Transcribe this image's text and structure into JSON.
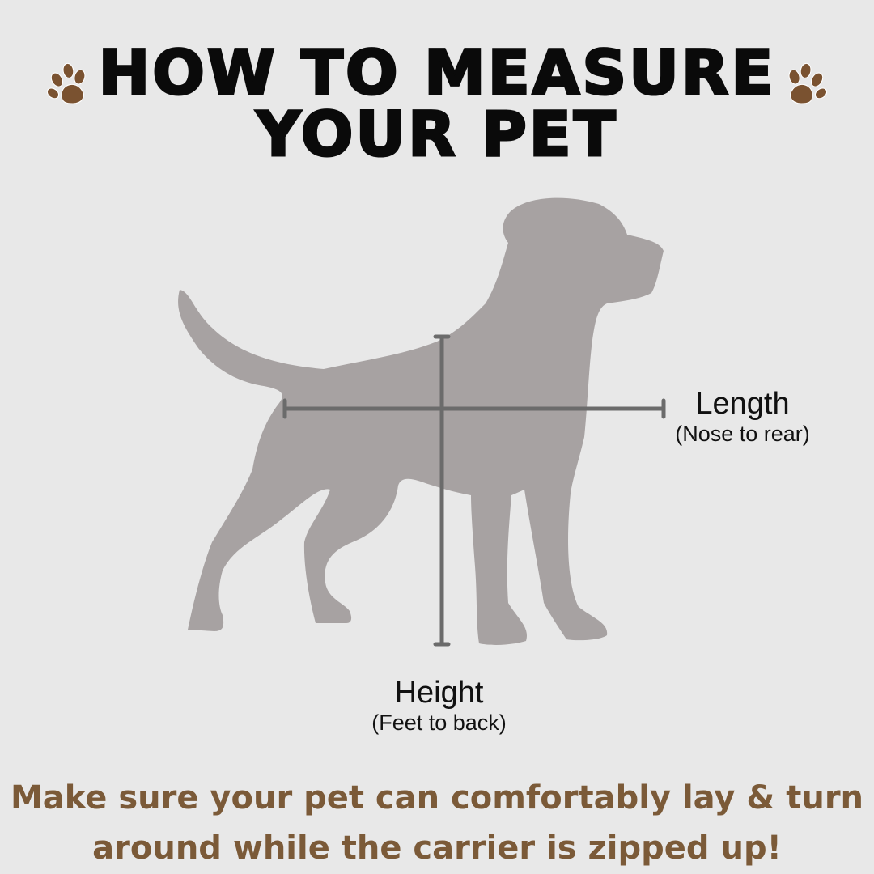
{
  "title": {
    "line1": "HOW TO MEASURE",
    "line2": "YOUR PET"
  },
  "icons": {
    "left": "paw-print-icon",
    "right": "paw-print-icon"
  },
  "measurements": {
    "length": {
      "label": "Length",
      "detail": "(Nose to rear)"
    },
    "height": {
      "label": "Height",
      "detail": "(Feet to back)"
    }
  },
  "note": {
    "line1": "Make sure your pet can comfortably lay & turn",
    "line2": "around while the carrier is zipped up!"
  },
  "colors": {
    "background": "#e8e8e8",
    "paw": "#7a5230",
    "dog": "#a7a2a2",
    "measure_line": "#6b6b6b",
    "note_text": "#7b5a38"
  }
}
